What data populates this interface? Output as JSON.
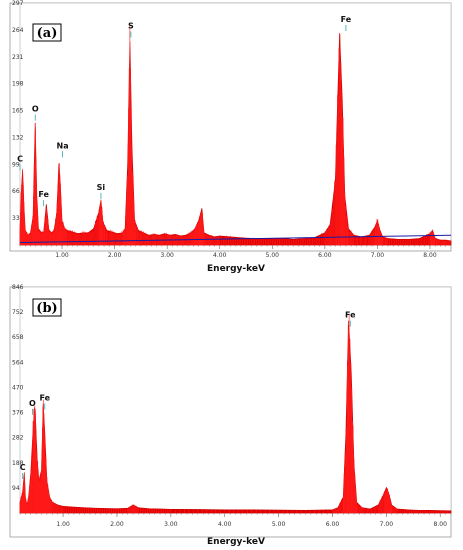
{
  "chart_data": [
    {
      "type": "line",
      "panel_label": "(a)",
      "xlabel": "Energy-keV",
      "xlim": [
        0.2,
        8.4
      ],
      "ylim": [
        0,
        297
      ],
      "xticks": [
        "1.00",
        "2.00",
        "3.00",
        "4.00",
        "5.00",
        "6.00",
        "7.00",
        "8.00"
      ],
      "yticks": [
        "33",
        "66",
        "99",
        "132",
        "165",
        "198",
        "231",
        "264",
        "297"
      ],
      "series": [
        {
          "x": [
            0.2,
            0.22,
            0.25,
            0.28,
            0.3,
            0.35,
            0.4,
            0.45,
            0.49,
            0.52,
            0.55,
            0.6,
            0.65,
            0.7,
            0.75,
            0.8,
            0.85,
            0.9,
            0.94,
            0.97,
            1.0,
            1.05,
            1.1,
            1.2,
            1.3,
            1.4,
            1.5,
            1.6,
            1.7,
            1.74,
            1.78,
            1.85,
            1.95,
            2.05,
            2.15,
            2.2,
            2.25,
            2.29,
            2.33,
            2.38,
            2.45,
            2.55,
            2.65,
            2.75,
            2.85,
            2.95,
            3.05,
            3.15,
            3.25,
            3.35,
            3.45,
            3.5,
            3.55,
            3.6,
            3.66,
            3.7,
            3.8,
            3.9,
            4.0,
            4.2,
            4.4,
            4.6,
            4.8,
            5.0,
            5.2,
            5.4,
            5.6,
            5.8,
            6.0,
            6.1,
            6.2,
            6.28,
            6.33,
            6.38,
            6.45,
            6.55,
            6.7,
            6.85,
            6.95,
            7.0,
            7.05,
            7.1,
            7.2,
            7.4,
            7.6,
            7.8,
            8.0,
            8.05,
            8.1,
            8.2,
            8.3,
            8.4
          ],
          "y": [
            20,
            60,
            92,
            40,
            18,
            12,
            15,
            35,
            150,
            60,
            20,
            16,
            15,
            50,
            18,
            15,
            18,
            40,
            100,
            70,
            30,
            20,
            18,
            16,
            14,
            15,
            15,
            20,
            40,
            55,
            28,
            18,
            16,
            14,
            15,
            20,
            100,
            250,
            120,
            30,
            18,
            15,
            12,
            13,
            12,
            14,
            12,
            13,
            11,
            12,
            15,
            18,
            22,
            30,
            45,
            15,
            12,
            10,
            11,
            10,
            9,
            8,
            8,
            8,
            8,
            7,
            8,
            9,
            15,
            25,
            80,
            260,
            180,
            60,
            20,
            12,
            10,
            12,
            22,
            30,
            18,
            10,
            8,
            7,
            7,
            8,
            14,
            18,
            8,
            6,
            6,
            5
          ]
        }
      ],
      "peak_labels": [
        {
          "text": "C",
          "x": 0.2,
          "y": 99
        },
        {
          "text": "O",
          "x": 0.49,
          "y": 160
        },
        {
          "text": "Fe",
          "x": 0.65,
          "y": 55
        },
        {
          "text": "Na",
          "x": 1.01,
          "y": 115
        },
        {
          "text": "Si",
          "x": 1.74,
          "y": 64
        },
        {
          "text": "S",
          "x": 2.31,
          "y": 262
        },
        {
          "text": "Fe",
          "x": 6.4,
          "y": 270
        }
      ]
    },
    {
      "type": "line",
      "panel_label": "(b)",
      "xlabel": "Energy-keV",
      "xlim": [
        0.2,
        8.2
      ],
      "ylim": [
        0,
        846
      ],
      "xticks": [
        "1.00",
        "2.00",
        "3.00",
        "4.00",
        "5.00",
        "6.00",
        "7.00",
        "8.00"
      ],
      "yticks": [
        "94",
        "188",
        "282",
        "376",
        "470",
        "564",
        "658",
        "752",
        "846"
      ],
      "series": [
        {
          "x": [
            0.2,
            0.25,
            0.28,
            0.3,
            0.33,
            0.36,
            0.4,
            0.45,
            0.48,
            0.52,
            0.55,
            0.6,
            0.63,
            0.66,
            0.7,
            0.75,
            0.8,
            0.9,
            1.0,
            1.2,
            1.4,
            1.6,
            1.8,
            2.0,
            2.2,
            2.3,
            2.4,
            2.6,
            2.8,
            3.0,
            3.5,
            4.0,
            4.5,
            5.0,
            5.5,
            6.0,
            6.1,
            6.2,
            6.25,
            6.3,
            6.35,
            6.4,
            6.45,
            6.55,
            6.7,
            6.85,
            6.95,
            7.0,
            7.05,
            7.1,
            7.2,
            7.4,
            7.6,
            7.8,
            8.0,
            8.2
          ],
          "y": [
            40,
            80,
            150,
            60,
            30,
            60,
            150,
            340,
            390,
            200,
            120,
            160,
            410,
            300,
            120,
            60,
            40,
            30,
            25,
            22,
            20,
            18,
            17,
            16,
            18,
            30,
            20,
            16,
            15,
            14,
            13,
            12,
            12,
            11,
            10,
            12,
            20,
            60,
            300,
            720,
            520,
            180,
            40,
            20,
            15,
            30,
            70,
            95,
            70,
            30,
            15,
            12,
            10,
            10,
            9,
            8
          ]
        }
      ],
      "peak_labels": [
        {
          "text": "C",
          "x": 0.25,
          "y": 150
        },
        {
          "text": "O",
          "x": 0.43,
          "y": 390
        },
        {
          "text": "Fe",
          "x": 0.66,
          "y": 410
        },
        {
          "text": "Fe",
          "x": 6.33,
          "y": 720
        }
      ]
    }
  ]
}
